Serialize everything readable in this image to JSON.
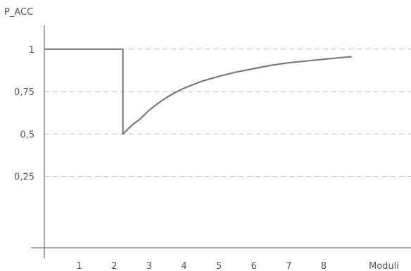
{
  "chart_data": {
    "type": "line",
    "title": "",
    "ylabel": "P_ACC",
    "xlabel": "Moduli",
    "xlim": [
      0,
      10.5
    ],
    "ylim": [
      -0.17,
      1.14
    ],
    "x_ticks": [
      1,
      2,
      3,
      4,
      5,
      6,
      7,
      8
    ],
    "x_tick_labels": [
      "1",
      "2",
      "3",
      "4",
      "5",
      "6",
      "7",
      "8"
    ],
    "y_ticks": [
      0.25,
      0.5,
      0.75,
      1
    ],
    "y_tick_labels": [
      "0,25",
      "0,5",
      "0,75",
      "1"
    ],
    "grid": "horizontal dashed",
    "series": [
      {
        "color": "#7a7a7a",
        "x": [
          0,
          2.25,
          2.25,
          2.35,
          2.5,
          2.75,
          3,
          3.25,
          3.5,
          3.75,
          4,
          4.5,
          5,
          5.5,
          6,
          6.5,
          7,
          7.5,
          8,
          8.5,
          8.8
        ],
        "y": [
          1,
          1,
          0.5,
          0.52,
          0.55,
          0.59,
          0.64,
          0.68,
          0.715,
          0.745,
          0.77,
          0.81,
          0.84,
          0.865,
          0.885,
          0.905,
          0.92,
          0.93,
          0.94,
          0.95,
          0.955
        ]
      }
    ]
  }
}
